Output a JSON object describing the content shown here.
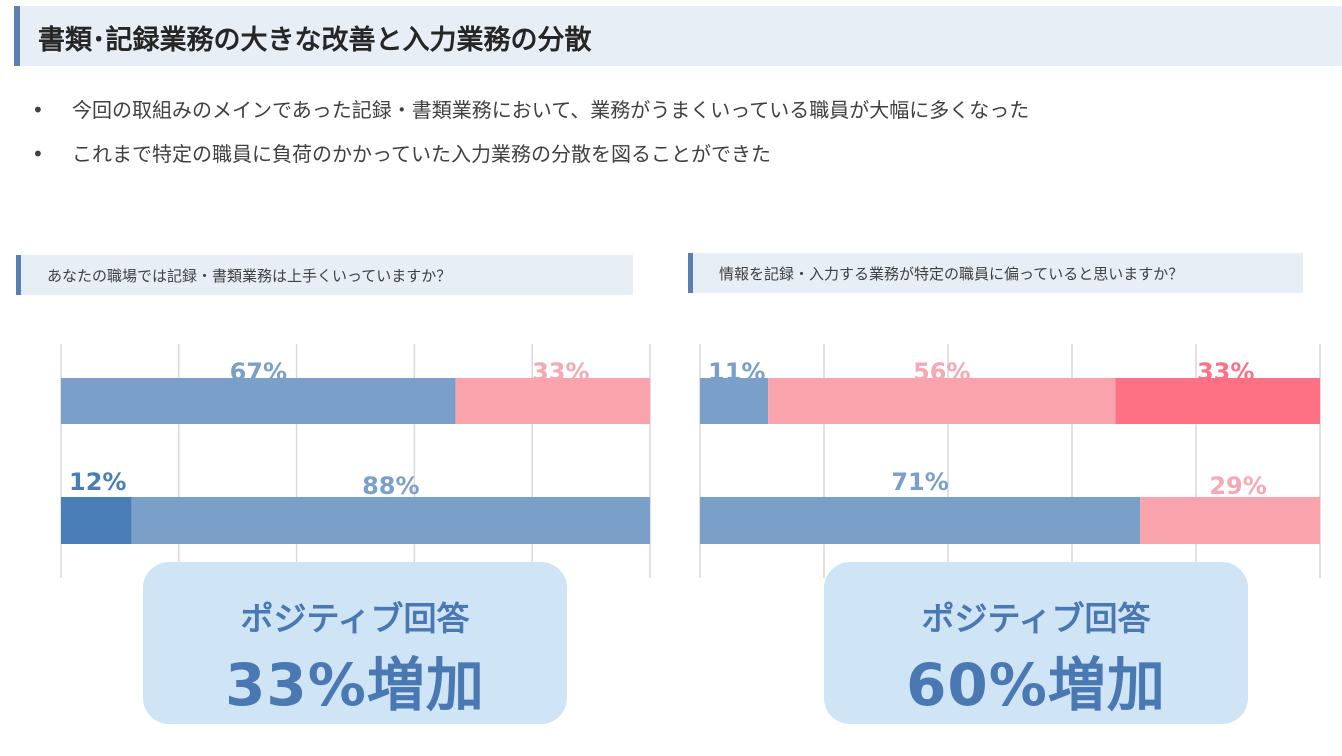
{
  "header": {
    "title": "書類･記録業務の大きな改善と入力業務の分散"
  },
  "bullets": [
    "今回の取組みのメインであった記録・書類業務において、業務がうまくいっている職員が大幅に多くなった",
    "これまで特定の職員に負荷のかかっていた入力業務の分散を図ることができた"
  ],
  "bullet_symbol": "•",
  "chart_data": [
    {
      "type": "bar",
      "orientation": "horizontal",
      "stacked": true,
      "question": "あなたの職場では記録・書類業務は上手くいっていますか？",
      "rows": [
        {
          "segments": [
            {
              "value": 67,
              "label": "67%",
              "color": "#7aa0c9",
              "label_color": "#7aa0c9"
            },
            {
              "value": 33,
              "label": "33%",
              "color": "#f9a3ad",
              "label_color": "#f7a8b2"
            }
          ]
        },
        {
          "segments": [
            {
              "value": 12,
              "label": "12%",
              "color": "#4a7eb6",
              "label_color": "#4a7eb6"
            },
            {
              "value": 88,
              "label": "88%",
              "color": "#7aa0c9",
              "label_color": "#7aa0c9"
            }
          ]
        }
      ],
      "xlim": [
        0,
        100
      ],
      "grid": true
    },
    {
      "type": "bar",
      "orientation": "horizontal",
      "stacked": true,
      "question": "情報を記録・入力する業務が特定の職員に偏っていると思いますか？",
      "rows": [
        {
          "segments": [
            {
              "value": 11,
              "label": "11%",
              "color": "#7aa0c9",
              "label_color": "#7aa0c9"
            },
            {
              "value": 56,
              "label": "56%",
              "color": "#f9a3ad",
              "label_color": "#f7a8b2"
            },
            {
              "value": 33,
              "label": "33%",
              "color": "#fe7185",
              "label_color": "#fe7185"
            }
          ]
        },
        {
          "segments": [
            {
              "value": 71,
              "label": "71%",
              "color": "#7aa0c9",
              "label_color": "#7aa0c9"
            },
            {
              "value": 29,
              "label": "29%",
              "color": "#f9a3ad",
              "label_color": "#f7a8b2"
            }
          ]
        }
      ],
      "xlim": [
        0,
        100
      ],
      "grid": true
    }
  ],
  "callouts": [
    {
      "small": "ポジティブ回答",
      "big": "33%増加"
    },
    {
      "small": "ポジティブ回答",
      "big": "60%増加"
    }
  ],
  "colors": {
    "title_bg": "#e7eef6",
    "accent": "#5a7fb0",
    "callout_bg": "#cfe4f5",
    "callout_text": "#4a78b2",
    "grid": "#d9d9d9"
  }
}
